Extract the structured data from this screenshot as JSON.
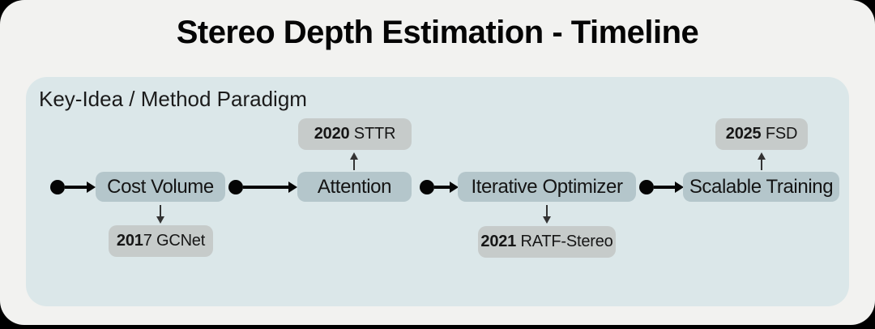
{
  "title": "Stereo Depth Estimation - Timeline",
  "panel": {
    "label": "Key-Idea / Method Paradigm"
  },
  "timeline": {
    "nodes": [
      {
        "label": "Cost Volume"
      },
      {
        "label": "Attention"
      },
      {
        "label": "Iterative Optimizer"
      },
      {
        "label": "Scalable Training"
      }
    ],
    "milestones": [
      {
        "bold": "201",
        "rest": "7 GCNet",
        "year": "2017",
        "placement": "below",
        "anchor": "Cost Volume"
      },
      {
        "bold": "2020",
        "rest": " STTR",
        "year": "2020",
        "placement": "above",
        "anchor": "Attention"
      },
      {
        "bold": "2021",
        "rest": " RATF-Stereo",
        "year": "2021",
        "placement": "below",
        "anchor": "Iterative Optimizer"
      },
      {
        "bold": "2025",
        "rest": " FSD",
        "year": "2025",
        "placement": "above",
        "anchor": "Scalable Training"
      }
    ]
  },
  "colors": {
    "page-bg": "#f2f2f0",
    "panel-bg": "#dbe7e9",
    "node-bg": "#b4c6cb",
    "badge-bg": "#c6cbca",
    "arrow": "#050505",
    "thin-arrow": "#333333"
  }
}
